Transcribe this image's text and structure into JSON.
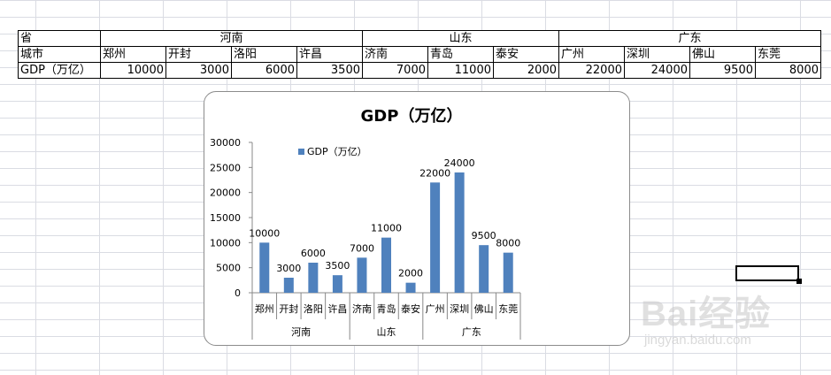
{
  "sheet": {
    "province_header": "省",
    "city_header": "城市",
    "row_label": "GDP（万亿）",
    "provinces": [
      {
        "name": "河南",
        "cities": [
          "郑州",
          "开封",
          "洛阳",
          "许昌"
        ],
        "values": [
          "10000",
          "3000",
          "6000",
          "3500"
        ]
      },
      {
        "name": "山东",
        "cities": [
          "济南",
          "青岛",
          "泰安"
        ],
        "values": [
          "7000",
          "11000",
          "2000"
        ]
      },
      {
        "name": "广东",
        "cities": [
          "广州",
          "深圳",
          "佛山",
          "东莞"
        ],
        "values": [
          "22000",
          "24000",
          "9500",
          "8000"
        ]
      }
    ]
  },
  "chart_data": {
    "type": "bar",
    "title": "GDP（万亿）",
    "legend": "GDP（万亿）",
    "legend_position": "top",
    "categories": [
      "郑州",
      "开封",
      "洛阳",
      "许昌",
      "济南",
      "青岛",
      "泰安",
      "广州",
      "深圳",
      "佛山",
      "东莞"
    ],
    "groups": [
      {
        "name": "河南",
        "count": 4
      },
      {
        "name": "山东",
        "count": 3
      },
      {
        "name": "广东",
        "count": 4
      }
    ],
    "series": [
      {
        "name": "GDP（万亿）",
        "values": [
          10000,
          3000,
          6000,
          3500,
          7000,
          11000,
          2000,
          22000,
          24000,
          9500,
          8000
        ]
      }
    ],
    "y_ticks": [
      "0",
      "5000",
      "10000",
      "15000",
      "20000",
      "25000",
      "30000"
    ],
    "ylim": [
      0,
      30000
    ],
    "grid": false,
    "bar_color": "#4f81bd"
  },
  "watermark": {
    "brand": "Bai经验",
    "sub": "经验",
    "url": "jingyan.baidu.com"
  }
}
